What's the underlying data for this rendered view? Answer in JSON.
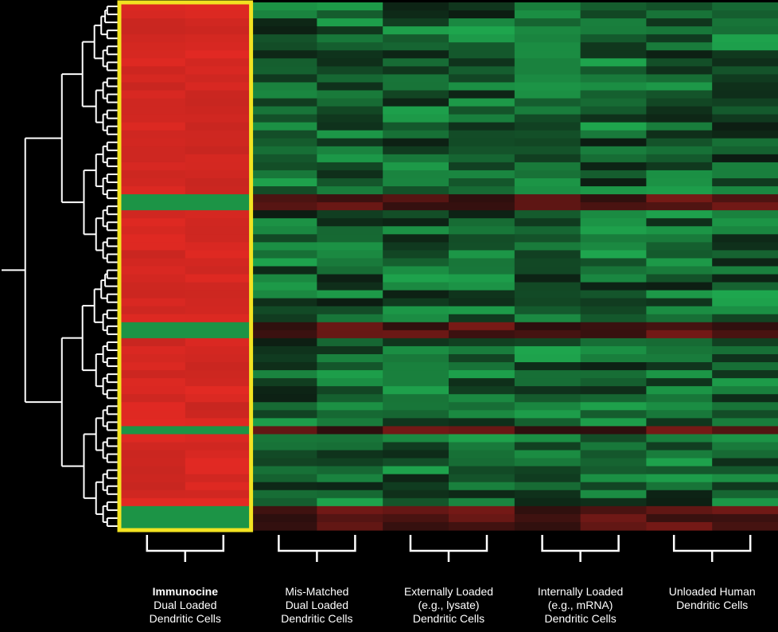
{
  "chart_data": {
    "type": "heatmap",
    "title": "",
    "xlabel": "",
    "ylabel": "",
    "colors": {
      "high": "#ec2b24",
      "mid": "#0a0a0a",
      "low": "#22c25a",
      "highlight_box": "#f2e321",
      "dendrogram": "#ffffff"
    },
    "groups": [
      {
        "id": "immunocine",
        "lines": [
          "Immunocine",
          "Dual Loaded",
          "Dendritic Cells"
        ],
        "highlighted": true
      },
      {
        "id": "mismatched",
        "lines": [
          "Mis-Matched",
          "Dual Loaded",
          "Dendritic Cells"
        ],
        "highlighted": false
      },
      {
        "id": "external",
        "lines": [
          "Externally Loaded",
          "(e.g., lysate)",
          "Dendritic Cells"
        ],
        "highlighted": false
      },
      {
        "id": "internal",
        "lines": [
          "Internally Loaded",
          "(e.g., mRNA)",
          "Dendritic Cells"
        ],
        "highlighted": false
      },
      {
        "id": "unloaded",
        "lines": [
          "Unloaded Human",
          "Dendritic Cells"
        ],
        "highlighted": false
      }
    ],
    "columns_per_group": 2,
    "rows": 66,
    "value_scale": [
      -1,
      1
    ],
    "immunocine_pattern": {
      "default": 0.9,
      "inverse_rows": [
        24,
        25,
        40,
        41,
        53,
        63,
        64,
        65
      ]
    }
  }
}
